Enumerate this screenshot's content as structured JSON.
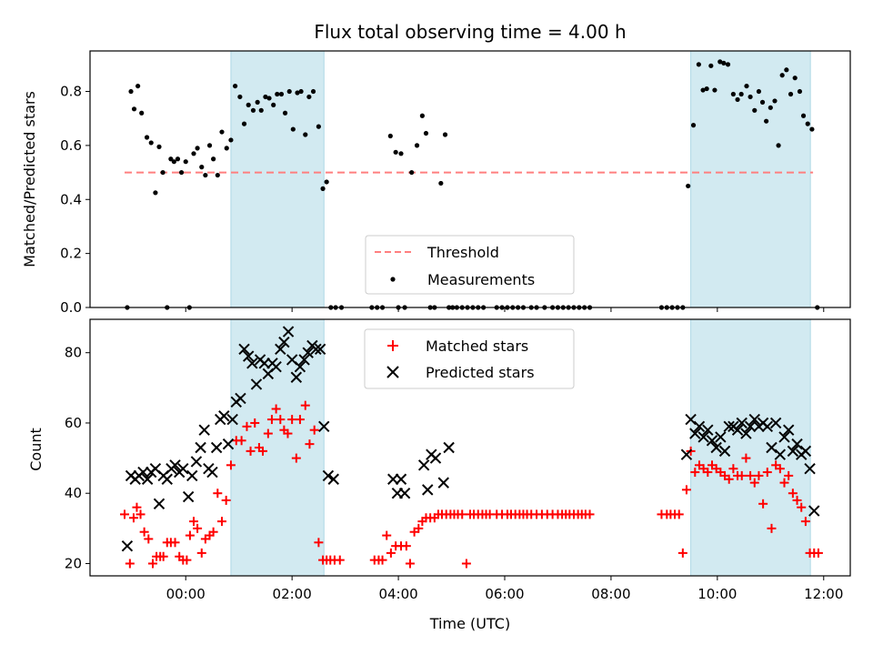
{
  "chart_data": {
    "title": "Flux total observing time = 4.00 h",
    "xlabel": "Time (UTC)",
    "x_tick_labels": [
      "00:00",
      "02:00",
      "04:00",
      "06:00",
      "08:00",
      "10:00",
      "12:00"
    ],
    "x_ticks_hours": [
      0,
      2,
      4,
      6,
      8,
      10,
      12
    ],
    "xlim_hours": [
      -1.8,
      12.5
    ],
    "shaded_intervals_hours": [
      [
        0.85,
        2.6
      ],
      [
        9.5,
        11.75
      ]
    ],
    "shade_color": "#add8e6",
    "panels": [
      {
        "name": "ratio",
        "type": "scatter",
        "ylabel": "Matched/Predicted stars",
        "ylim": [
          0,
          0.95
        ],
        "y_ticks": [
          0.0,
          0.2,
          0.4,
          0.6,
          0.8
        ],
        "y_tick_labels": [
          "0.0",
          "0.2",
          "0.4",
          "0.6",
          "0.8"
        ],
        "legend": {
          "placement": "lower center",
          "entries": [
            "Threshold",
            "Measurements"
          ]
        },
        "threshold": {
          "name": "Threshold",
          "value": 0.5,
          "x_range": [
            -1.15,
            11.8
          ],
          "color": "#ff7f7f",
          "style": "dashed"
        },
        "measurements": {
          "name": "Measurements",
          "color": "#000000",
          "x": [
            -1.1,
            -1.03,
            -0.97,
            -0.9,
            -0.83,
            -0.73,
            -0.65,
            -0.57,
            -0.5,
            -0.43,
            -0.35,
            -0.28,
            -0.22,
            -0.15,
            -0.08,
            0.0,
            0.07,
            0.15,
            0.22,
            0.3,
            0.37,
            0.45,
            0.52,
            0.6,
            0.68,
            0.77,
            0.85,
            0.93,
            1.02,
            1.1,
            1.18,
            1.27,
            1.35,
            1.42,
            1.5,
            1.57,
            1.65,
            1.72,
            1.8,
            1.87,
            1.95,
            2.02,
            2.1,
            2.17,
            2.25,
            2.32,
            2.4,
            2.5,
            2.58,
            2.65,
            2.73,
            2.82,
            2.93,
            3.5,
            3.6,
            3.7,
            3.85,
            3.95,
            4.0,
            4.05,
            4.12,
            4.25,
            4.35,
            4.45,
            4.52,
            4.6,
            4.68,
            4.8,
            4.88,
            4.95,
            5.02,
            5.1,
            5.2,
            5.3,
            5.4,
            5.5,
            5.6,
            5.85,
            5.95,
            6.05,
            6.15,
            6.25,
            6.35,
            6.5,
            6.6,
            6.75,
            6.9,
            7.0,
            7.1,
            7.2,
            7.3,
            7.4,
            7.5,
            7.6,
            8.95,
            9.05,
            9.15,
            9.25,
            9.35,
            9.45,
            9.55,
            9.65,
            9.73,
            9.8,
            9.88,
            9.95,
            10.05,
            10.12,
            10.2,
            10.3,
            10.38,
            10.45,
            10.55,
            10.62,
            10.7,
            10.78,
            10.85,
            10.92,
            11.0,
            11.08,
            11.15,
            11.22,
            11.3,
            11.38,
            11.46,
            11.55,
            11.62,
            11.7,
            11.78,
            11.88
          ],
          "y": [
            0.0,
            0.8,
            0.735,
            0.82,
            0.72,
            0.63,
            0.61,
            0.425,
            0.595,
            0.5,
            0.0,
            0.55,
            0.54,
            0.55,
            0.5,
            0.54,
            0.0,
            0.57,
            0.59,
            0.52,
            0.49,
            0.6,
            0.55,
            0.49,
            0.65,
            0.59,
            0.62,
            0.82,
            0.78,
            0.68,
            0.75,
            0.73,
            0.76,
            0.73,
            0.78,
            0.775,
            0.75,
            0.79,
            0.79,
            0.72,
            0.8,
            0.66,
            0.795,
            0.8,
            0.64,
            0.78,
            0.8,
            0.67,
            0.44,
            0.465,
            0.0,
            0.0,
            0.0,
            0.0,
            0.0,
            0.0,
            0.635,
            0.575,
            0.0,
            0.57,
            0.0,
            0.5,
            0.6,
            0.71,
            0.645,
            0.0,
            0.0,
            0.46,
            0.64,
            0.0,
            0.0,
            0.0,
            0.0,
            0.0,
            0.0,
            0.0,
            0.0,
            0.0,
            0.0,
            0.0,
            0.0,
            0.0,
            0.0,
            0.0,
            0.0,
            0.0,
            0.0,
            0.0,
            0.0,
            0.0,
            0.0,
            0.0,
            0.0,
            0.0,
            0.0,
            0.0,
            0.0,
            0.0,
            0.0,
            0.45,
            0.675,
            0.9,
            0.805,
            0.81,
            0.895,
            0.805,
            0.91,
            0.905,
            0.9,
            0.79,
            0.77,
            0.79,
            0.82,
            0.78,
            0.73,
            0.8,
            0.76,
            0.69,
            0.74,
            0.765,
            0.6,
            0.86,
            0.88,
            0.79,
            0.85,
            0.8,
            0.71,
            0.68,
            0.66,
            0.0
          ]
        }
      },
      {
        "name": "counts",
        "type": "scatter",
        "ylabel": "Count",
        "ylim": [
          16.5,
          89.5
        ],
        "y_ticks": [
          20,
          40,
          60,
          80
        ],
        "y_tick_labels": [
          "20",
          "40",
          "60",
          "80"
        ],
        "legend": {
          "placement": "upper center",
          "entries": [
            "Matched stars",
            "Predicted stars"
          ]
        },
        "series": [
          {
            "name": "Matched stars",
            "marker": "plus",
            "color": "#ff0000",
            "x": [
              -1.15,
              -1.05,
              -0.98,
              -0.92,
              -0.85,
              -0.78,
              -0.7,
              -0.62,
              -0.55,
              -0.48,
              -0.42,
              -0.35,
              -0.28,
              -0.2,
              -0.12,
              -0.05,
              0.02,
              0.08,
              0.15,
              0.22,
              0.3,
              0.37,
              0.45,
              0.52,
              0.6,
              0.68,
              0.76,
              0.85,
              0.95,
              1.05,
              1.15,
              1.22,
              1.3,
              1.38,
              1.45,
              1.55,
              1.62,
              1.7,
              1.78,
              1.85,
              1.92,
              2.0,
              2.08,
              2.15,
              2.25,
              2.33,
              2.42,
              2.5,
              2.58,
              2.65,
              2.72,
              2.8,
              2.9,
              3.55,
              3.63,
              3.7,
              3.78,
              3.86,
              3.95,
              4.05,
              4.15,
              4.22,
              4.3,
              4.38,
              4.45,
              4.52,
              4.6,
              4.68,
              4.75,
              4.82,
              4.9,
              4.98,
              5.05,
              5.12,
              5.2,
              5.28,
              5.35,
              5.42,
              5.5,
              5.58,
              5.65,
              5.72,
              5.85,
              5.95,
              6.05,
              6.12,
              6.2,
              6.28,
              6.35,
              6.42,
              6.5,
              6.6,
              6.7,
              6.8,
              6.9,
              7.0,
              7.08,
              7.15,
              7.22,
              7.3,
              7.38,
              7.45,
              7.52,
              7.6,
              8.95,
              9.05,
              9.12,
              9.2,
              9.28,
              9.35,
              9.42,
              9.5,
              9.58,
              9.66,
              9.74,
              9.82,
              9.9,
              9.98,
              10.06,
              10.14,
              10.22,
              10.3,
              10.38,
              10.46,
              10.54,
              10.62,
              10.7,
              10.78,
              10.86,
              10.94,
              11.02,
              11.1,
              11.18,
              11.26,
              11.34,
              11.42,
              11.5,
              11.58,
              11.66,
              11.74,
              11.82,
              11.9
            ],
            "y": [
              34,
              20,
              33,
              36,
              34,
              29,
              27,
              20,
              22,
              22,
              22,
              26,
              26,
              26,
              22,
              21,
              21,
              28,
              32,
              30,
              23,
              27,
              28,
              29,
              40,
              32,
              38,
              48,
              55,
              55,
              59,
              52,
              60,
              53,
              52,
              57,
              61,
              64,
              61,
              58,
              57,
              61,
              50,
              61,
              65,
              54,
              58,
              26,
              21,
              21,
              21,
              21,
              21,
              21,
              21,
              21,
              28,
              23,
              25,
              25,
              25,
              20,
              29,
              30,
              32,
              33,
              33,
              33,
              34,
              34,
              34,
              34,
              34,
              34,
              34,
              20,
              34,
              34,
              34,
              34,
              34,
              34,
              34,
              34,
              34,
              34,
              34,
              34,
              34,
              34,
              34,
              34,
              34,
              34,
              34,
              34,
              34,
              34,
              34,
              34,
              34,
              34,
              34,
              34,
              34,
              34,
              34,
              34,
              34,
              23,
              41,
              52,
              46,
              48,
              47,
              46,
              48,
              47,
              46,
              45,
              44,
              47,
              45,
              45,
              50,
              45,
              43,
              45,
              37,
              46,
              30,
              48,
              47,
              43,
              45,
              40,
              38,
              36,
              32,
              23,
              23,
              23
            ],
            "x_note_omit": []
          },
          {
            "name": "Predicted stars",
            "marker": "x",
            "color": "#000000",
            "x": [
              -1.1,
              -1.03,
              -0.95,
              -0.88,
              -0.8,
              -0.72,
              -0.65,
              -0.57,
              -0.5,
              -0.42,
              -0.35,
              -0.27,
              -0.2,
              -0.12,
              -0.05,
              0.05,
              0.12,
              0.2,
              0.28,
              0.35,
              0.43,
              0.5,
              0.58,
              0.65,
              0.72,
              0.8,
              0.88,
              0.95,
              1.03,
              1.1,
              1.18,
              1.25,
              1.33,
              1.4,
              1.48,
              1.55,
              1.63,
              1.7,
              1.78,
              1.85,
              1.93,
              2.0,
              2.08,
              2.15,
              2.23,
              2.3,
              2.38,
              2.45,
              2.53,
              2.6,
              2.68,
              2.78,
              3.9,
              3.98,
              4.05,
              4.12,
              4.48,
              4.55,
              4.62,
              4.7,
              4.85,
              4.95,
              9.42,
              9.5,
              9.58,
              9.66,
              9.74,
              9.82,
              9.9,
              9.98,
              10.06,
              10.14,
              10.22,
              10.3,
              10.38,
              10.46,
              10.54,
              10.62,
              10.7,
              10.78,
              10.86,
              10.94,
              11.02,
              11.1,
              11.18,
              11.26,
              11.34,
              11.42,
              11.5,
              11.58,
              11.66,
              11.74,
              11.82
            ],
            "y": [
              25,
              45,
              44,
              45,
              46,
              44,
              46,
              47,
              37,
              45,
              44,
              47,
              48,
              46,
              47,
              39,
              45,
              49,
              53,
              58,
              47,
              46,
              53,
              61,
              62,
              54,
              61,
              66,
              67,
              81,
              79,
              77,
              71,
              78,
              77,
              74,
              77,
              76,
              81,
              83,
              86,
              78,
              73,
              76,
              78,
              80,
              82,
              81,
              81,
              59,
              45,
              44,
              44,
              40,
              44,
              40,
              48,
              41,
              51,
              50,
              43,
              53,
              51,
              61,
              57,
              59,
              56,
              58,
              55,
              53,
              56,
              52,
              59,
              59,
              58,
              60,
              57,
              59,
              61,
              59,
              60,
              59,
              53,
              60,
              51,
              56,
              58,
              52,
              54,
              51,
              52,
              47,
              35
            ]
          }
        ]
      }
    ]
  }
}
